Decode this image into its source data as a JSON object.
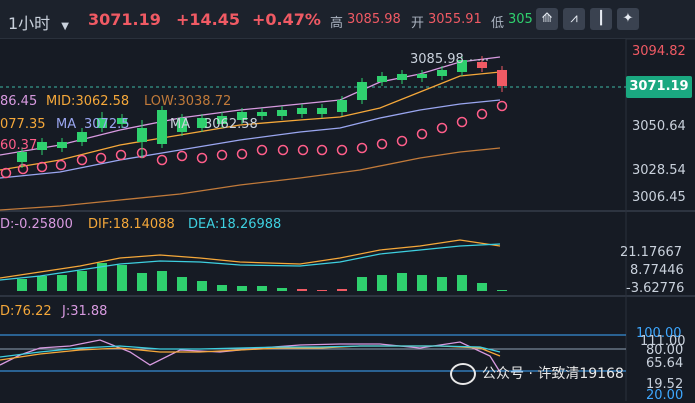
{
  "header": {
    "timeframe": "1小时",
    "last_price": "3071.19",
    "change": "+14.45",
    "change_pct": "+0.47%",
    "high_label": "高",
    "high_value": "3085.98",
    "open_label": "开",
    "open_value": "3055.91",
    "low_label": "低",
    "low_value": "305",
    "tools": [
      "chart-tool-icon",
      "indicator-icon",
      "candlestick-icon",
      "settings-icon"
    ]
  },
  "main_chart": {
    "mid_label": "MID:3062.58",
    "low_label": "LOW:3038.72",
    "up_partial": "86.45",
    "ma_partial": "077.35",
    "ma_label": "MA",
    "ma_partial2": "3072.5",
    "ma_partial3": "MA",
    "ma_partial4": "3062.58",
    "partial_left": "60.37",
    "peak_label": "3085.98",
    "current_price_tag": "3071.19",
    "axis_labels": [
      "3094.82",
      "3050.64",
      "3028.54",
      "3006.45"
    ]
  },
  "macd_panel": {
    "macd_label": "D:-0.25800",
    "dif_label": "DIF:18.14088",
    "dea_label": "DEA:18.26988",
    "axis_labels": [
      "21.17667",
      "8.77446",
      "-3.62776"
    ]
  },
  "kdj_panel": {
    "d_label": "D:76.22",
    "j_label": "J:31.88",
    "axis_labels": [
      "100.00",
      "111.00",
      "80.00",
      "65.64",
      "19.52",
      "20.00"
    ]
  },
  "watermark": {
    "text": "公众号 · 许致清19168"
  },
  "colors": {
    "up": "#f05a64",
    "down": "#2fd06e",
    "boll_upper": "#d89ae0",
    "boll_mid": "#f5a83a",
    "boll_lower": "#9aa6f0",
    "ma_slow": "#c17a3a",
    "sar": "#ff5e8a"
  }
}
